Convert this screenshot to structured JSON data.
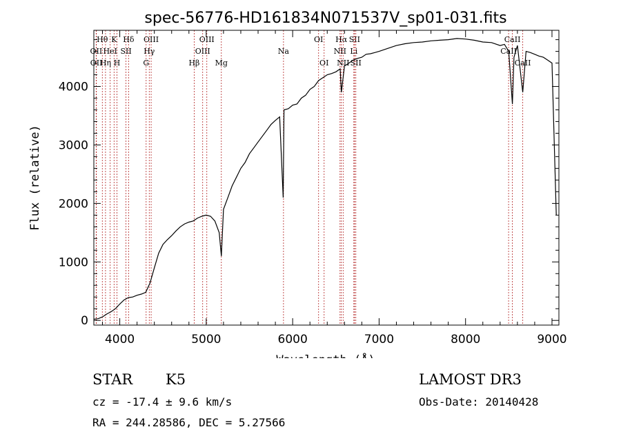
{
  "chart_data": {
    "type": "line",
    "title": "spec-56776-HD161834N071537V_sp01-031.fits",
    "xlabel": "Wavelength (Å)",
    "ylabel": "Flux (relative)",
    "xlim": [
      3700,
      9080
    ],
    "ylim": [
      -80,
      4960
    ],
    "xticks": [
      4000,
      5000,
      6000,
      7000,
      8000,
      9000
    ],
    "yticks": [
      0,
      1000,
      2000,
      3000,
      4000
    ],
    "xtick_labels": [
      "4000",
      "5000",
      "6000",
      "7000",
      "8000",
      "9000"
    ],
    "ytick_labels": [
      "0",
      "1000",
      "2000",
      "3000",
      "4000"
    ],
    "series": [
      {
        "name": "spectrum",
        "x": [
          3700,
          3750,
          3800,
          3850,
          3900,
          3950,
          4000,
          4050,
          4100,
          4150,
          4200,
          4250,
          4300,
          4350,
          4400,
          4450,
          4500,
          4550,
          4600,
          4650,
          4700,
          4750,
          4800,
          4850,
          4900,
          4950,
          5000,
          5050,
          5100,
          5150,
          5175,
          5200,
          5250,
          5300,
          5350,
          5400,
          5450,
          5500,
          5550,
          5600,
          5650,
          5700,
          5750,
          5800,
          5850,
          5890,
          5900,
          5950,
          6000,
          6050,
          6100,
          6150,
          6200,
          6250,
          6300,
          6350,
          6400,
          6450,
          6500,
          6550,
          6563,
          6600,
          6650,
          6700,
          6750,
          6800,
          6850,
          6900,
          6950,
          7000,
          7100,
          7200,
          7300,
          7400,
          7500,
          7600,
          7700,
          7800,
          7900,
          8000,
          8100,
          8200,
          8300,
          8400,
          8450,
          8500,
          8542,
          8560,
          8600,
          8662,
          8700,
          8750,
          8800,
          8850,
          8900,
          8950,
          9000,
          9050
        ],
        "y": [
          20,
          30,
          60,
          110,
          150,
          200,
          280,
          350,
          390,
          400,
          430,
          450,
          480,
          640,
          900,
          1150,
          1300,
          1380,
          1450,
          1530,
          1600,
          1650,
          1680,
          1700,
          1750,
          1780,
          1800,
          1780,
          1700,
          1500,
          1100,
          1900,
          2100,
          2300,
          2450,
          2600,
          2700,
          2850,
          2950,
          3050,
          3150,
          3250,
          3350,
          3420,
          3480,
          2100,
          3600,
          3620,
          3680,
          3700,
          3800,
          3850,
          3950,
          4000,
          4100,
          4150,
          4200,
          4220,
          4250,
          4300,
          3900,
          4350,
          4400,
          4450,
          4480,
          4500,
          4550,
          4560,
          4580,
          4600,
          4650,
          4700,
          4730,
          4750,
          4760,
          4780,
          4790,
          4800,
          4820,
          4810,
          4790,
          4760,
          4750,
          4700,
          4720,
          4600,
          3700,
          4500,
          4700,
          3900,
          4600,
          4580,
          4550,
          4520,
          4500,
          4450,
          4400,
          1800
        ]
      }
    ],
    "line_markers": [
      {
        "label": "Hθ",
        "wavelength": 3798,
        "row": 1
      },
      {
        "label": "OII",
        "wavelength": 3727,
        "row": 2
      },
      {
        "label": "OII",
        "wavelength": 3729,
        "row": 3
      },
      {
        "label": "K",
        "wavelength": 3934,
        "row": 1
      },
      {
        "label": "HeI",
        "wavelength": 3889,
        "row": 2
      },
      {
        "label": "Hη",
        "wavelength": 3835,
        "row": 3
      },
      {
        "label": "Hδ",
        "wavelength": 4102,
        "row": 1
      },
      {
        "label": "SII",
        "wavelength": 4072,
        "row": 2
      },
      {
        "label": "H",
        "wavelength": 3968,
        "row": 3
      },
      {
        "label": "OIII",
        "wavelength": 4363,
        "row": 1
      },
      {
        "label": "Hγ",
        "wavelength": 4341,
        "row": 2
      },
      {
        "label": "G",
        "wavelength": 4305,
        "row": 3
      },
      {
        "label": "Hβ",
        "wavelength": 4861,
        "row": 3
      },
      {
        "label": "OIII",
        "wavelength": 4959,
        "row": 2
      },
      {
        "label": "OIII",
        "wavelength": 5007,
        "row": 1
      },
      {
        "label": "Mg",
        "wavelength": 5175,
        "row": 3
      },
      {
        "label": "Na",
        "wavelength": 5894,
        "row": 2
      },
      {
        "label": "OI",
        "wavelength": 6300,
        "row": 1
      },
      {
        "label": "OI",
        "wavelength": 6364,
        "row": 3
      },
      {
        "label": "Hα",
        "wavelength": 6563,
        "row": 1
      },
      {
        "label": "NII",
        "wavelength": 6548,
        "row": 2
      },
      {
        "label": "NII",
        "wavelength": 6584,
        "row": 3
      },
      {
        "label": "SII",
        "wavelength": 6716,
        "row": 1
      },
      {
        "label": "Li",
        "wavelength": 6708,
        "row": 2
      },
      {
        "label": "SII",
        "wavelength": 6731,
        "row": 3
      },
      {
        "label": "CaII",
        "wavelength": 8542,
        "row": 1
      },
      {
        "label": "CaII",
        "wavelength": 8498,
        "row": 2
      },
      {
        "label": "CaII",
        "wavelength": 8662,
        "row": 3
      }
    ]
  },
  "info": {
    "class_label": "STAR",
    "subclass_label": "K5",
    "survey_label": "LAMOST DR3",
    "redshift_label": "cz = -17.4 ± 9.6 km/s",
    "obsdate_label": "Obs-Date: 20140428",
    "coords_label": "RA = 244.28586, DEC =   5.27566"
  },
  "colors": {
    "spectrum": "#000000",
    "marker_line": "#b22222",
    "axes": "#000000"
  }
}
